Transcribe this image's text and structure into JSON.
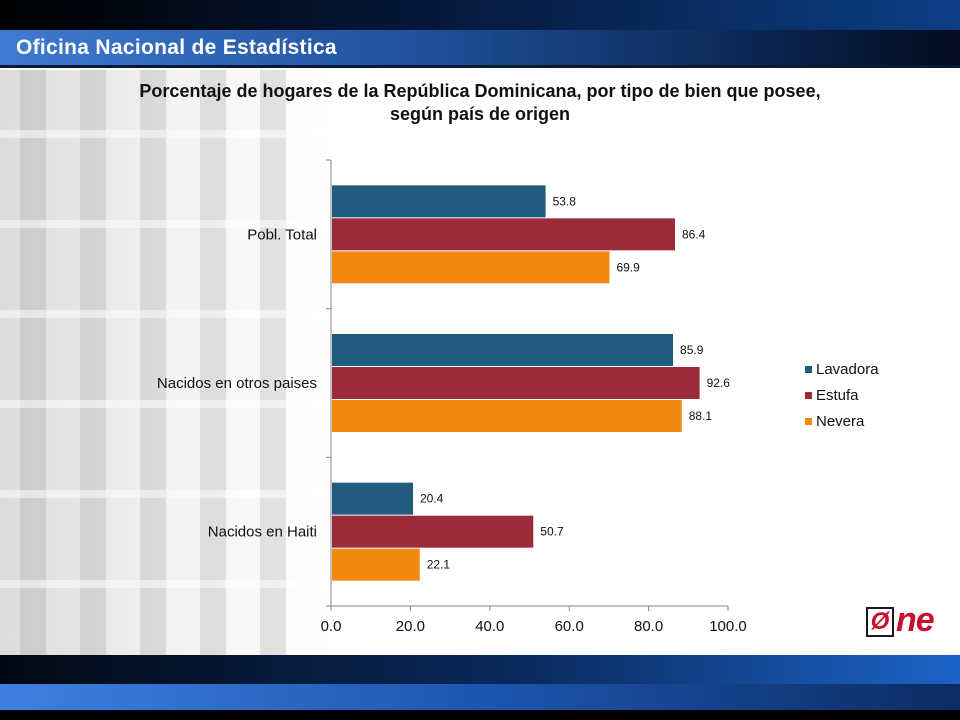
{
  "header": {
    "org_name": "Oficina Nacional de Estadística"
  },
  "logo": {
    "mark": "Ø",
    "word": "ne"
  },
  "colors": {
    "lavadora": "#215C7E",
    "estufa": "#9B2B3A",
    "nevera": "#F28A12"
  },
  "chart_data": {
    "type": "bar",
    "orientation": "horizontal",
    "title": "Porcentaje de hogares de la República Dominicana, por tipo de bien que posee, según país de origen",
    "title_lines": [
      "Porcentaje de hogares de la República Dominicana, por tipo de bien que posee,",
      "según país de origen"
    ],
    "categories": [
      "Pobl. Total",
      "Nacidos en otros paises",
      "Nacidos en Haiti"
    ],
    "series": [
      {
        "name": "Lavadora",
        "values": [
          53.8,
          85.9,
          20.4
        ],
        "labels": [
          "53.8",
          "85.9",
          "20.4"
        ]
      },
      {
        "name": "Estufa",
        "values": [
          86.4,
          92.6,
          50.7
        ],
        "labels": [
          "86.4",
          "92.6",
          "50.7"
        ]
      },
      {
        "name": "Nevera",
        "values": [
          69.9,
          88.1,
          22.1
        ],
        "labels": [
          "69.9",
          "88.1",
          "22.1"
        ]
      }
    ],
    "xlim": [
      0,
      100
    ],
    "xticks": [
      0,
      20,
      40,
      60,
      80,
      100
    ],
    "xtick_labels": [
      "0.0",
      "20.0",
      "40.0",
      "60.0",
      "80.0",
      "100.0"
    ],
    "grid": false,
    "legend": "right"
  }
}
